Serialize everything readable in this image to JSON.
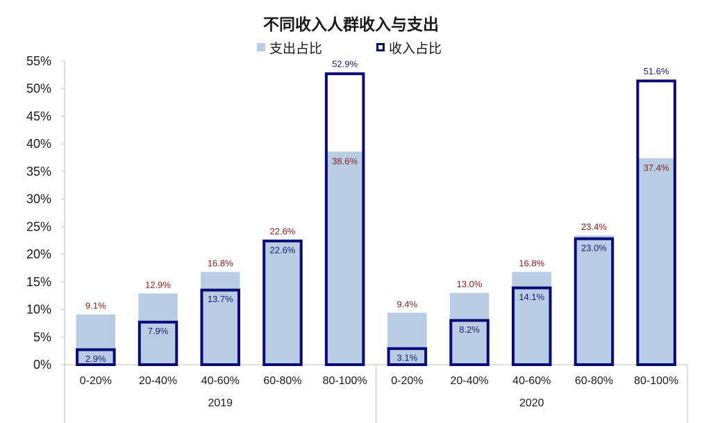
{
  "chart_data": {
    "type": "bar",
    "title": "不同收入人群收入与支出",
    "groups": [
      "2019",
      "2020"
    ],
    "categories": [
      "0-20%",
      "20-40%",
      "40-60%",
      "60-80%",
      "80-100%"
    ],
    "series": [
      {
        "name": "支出占比",
        "color": "#b8cce4",
        "style": "filled",
        "values": {
          "2019": [
            9.1,
            12.9,
            16.8,
            22.6,
            38.6
          ],
          "2020": [
            9.4,
            13.0,
            16.8,
            23.4,
            37.4
          ]
        },
        "labels": {
          "2019": [
            "9.1%",
            "12.9%",
            "16.8%",
            "22.6%",
            "38.6%"
          ],
          "2020": [
            "9.4%",
            "13.0%",
            "16.8%",
            "23.4%",
            "37.4%"
          ]
        }
      },
      {
        "name": "收入占比",
        "color": "#0a0a78",
        "style": "outline",
        "values": {
          "2019": [
            2.9,
            7.9,
            13.7,
            22.6,
            52.9
          ],
          "2020": [
            3.1,
            8.2,
            14.1,
            23.0,
            51.6
          ]
        },
        "labels": {
          "2019": [
            "2.9%",
            "7.9%",
            "13.7%",
            "22.6%",
            "52.9%"
          ],
          "2020": [
            "3.1%",
            "8.2%",
            "14.1%",
            "23.0%",
            "51.6%"
          ]
        }
      }
    ],
    "yaxis": {
      "min": 0,
      "max": 55,
      "step": 5,
      "tick_labels": [
        "0%",
        "5%",
        "10%",
        "15%",
        "20%",
        "25%",
        "30%",
        "35%",
        "40%",
        "45%",
        "50%",
        "55%"
      ]
    },
    "grid": false,
    "legend_position": "top",
    "expense_label_color": "#8b1c1c",
    "income_label_color": "#1a1a6e"
  }
}
